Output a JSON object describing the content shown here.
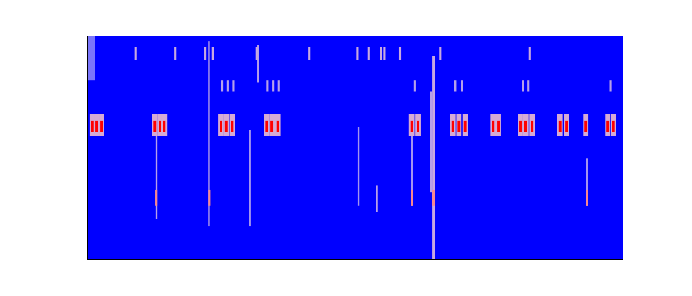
{
  "chart_data": {
    "type": "heatmap",
    "tick_labels": false,
    "xlim": [
      0,
      100
    ],
    "ylim": [
      0,
      100
    ],
    "zlim": [
      0,
      1
    ],
    "colors": [
      "#0000ff",
      "#ffffff",
      "#ff0000"
    ],
    "cells": [
      [
        0,
        1.5,
        80,
        100,
        0.25
      ],
      [
        12.8,
        13.1,
        17.8,
        56,
        0.4
      ],
      [
        22.6,
        22.9,
        14.7,
        97.5,
        0.4
      ],
      [
        64.5,
        64.9,
        0,
        91,
        0.45
      ],
      [
        64.0,
        64.4,
        30,
        75,
        0.4
      ],
      [
        30.2,
        30.5,
        14.7,
        57.7,
        0.35
      ],
      [
        50.5,
        50.8,
        24,
        59,
        0.35
      ],
      [
        53.9,
        54.2,
        21,
        33,
        0.4
      ],
      [
        93.2,
        93.5,
        24,
        45,
        0.35
      ],
      [
        60.5,
        60.8,
        24,
        55,
        0.35
      ],
      [
        31.8,
        32.1,
        79,
        96,
        0.4
      ],
      [
        8.8,
        9.2,
        89,
        95,
        0.45
      ],
      [
        16.3,
        16.7,
        89,
        95,
        0.45
      ],
      [
        21.8,
        22.2,
        89,
        95,
        0.45
      ],
      [
        23.3,
        23.7,
        89,
        95,
        0.45
      ],
      [
        31.5,
        31.9,
        89,
        95,
        0.45
      ],
      [
        41.3,
        41.7,
        89,
        95,
        0.45
      ],
      [
        50.3,
        50.7,
        89,
        95,
        0.45
      ],
      [
        52.4,
        52.8,
        89,
        95,
        0.45
      ],
      [
        54.7,
        55.1,
        89,
        95,
        0.45
      ],
      [
        55.3,
        55.7,
        89,
        95,
        0.45
      ],
      [
        58.2,
        58.6,
        89,
        95,
        0.45
      ],
      [
        65.8,
        66.2,
        89,
        95,
        0.45
      ],
      [
        82.4,
        82.8,
        89,
        95,
        0.45
      ],
      [
        25.0,
        25.4,
        75,
        80,
        0.4
      ],
      [
        26.0,
        26.4,
        75,
        80,
        0.4
      ],
      [
        27.1,
        27.5,
        75,
        80,
        0.4
      ],
      [
        33.5,
        33.9,
        75,
        80,
        0.4
      ],
      [
        34.5,
        34.9,
        75,
        80,
        0.4
      ],
      [
        35.6,
        36.0,
        75,
        80,
        0.4
      ],
      [
        61.0,
        61.4,
        75,
        80,
        0.4
      ],
      [
        68.5,
        68.9,
        75,
        80,
        0.4
      ],
      [
        69.8,
        70.2,
        75,
        80,
        0.4
      ],
      [
        81.2,
        81.6,
        75,
        80,
        0.4
      ],
      [
        82.2,
        82.6,
        75,
        80,
        0.4
      ],
      [
        97.5,
        97.9,
        75,
        80,
        0.4
      ],
      [
        12.7,
        13.1,
        24,
        31,
        0.7
      ],
      [
        22.6,
        23.0,
        24,
        31,
        0.7
      ],
      [
        60.4,
        60.8,
        24,
        31,
        0.7
      ],
      [
        64.5,
        64.9,
        24,
        31,
        0.7
      ],
      [
        93.1,
        93.5,
        24,
        31,
        0.7
      ],
      [
        0.5,
        1.5,
        55,
        65,
        0.5
      ],
      [
        0.75,
        1.25,
        57,
        62,
        1
      ],
      [
        1.3,
        2.3,
        55,
        65,
        0.5
      ],
      [
        1.55,
        2.05,
        57,
        62,
        1
      ],
      [
        2.2,
        3.2,
        55,
        65,
        0.5
      ],
      [
        2.45,
        2.95,
        57,
        62,
        1
      ],
      [
        12.1,
        13.1,
        55,
        65,
        0.5
      ],
      [
        12.35,
        12.85,
        57,
        62,
        1
      ],
      [
        13.1,
        14.1,
        55,
        65,
        0.5
      ],
      [
        13.35,
        13.85,
        57,
        62,
        1
      ],
      [
        13.9,
        14.9,
        55,
        65,
        0.5
      ],
      [
        14.15,
        14.65,
        57,
        62,
        1
      ],
      [
        24.5,
        25.5,
        55,
        65,
        0.5
      ],
      [
        24.75,
        25.25,
        57,
        62,
        1
      ],
      [
        25.5,
        26.5,
        55,
        65,
        0.5
      ],
      [
        25.75,
        26.25,
        57,
        62,
        1
      ],
      [
        26.6,
        27.6,
        55,
        65,
        0.5
      ],
      [
        26.85,
        27.35,
        57,
        62,
        1
      ],
      [
        33,
        34,
        55,
        65,
        0.5
      ],
      [
        33.25,
        33.75,
        57,
        62,
        1
      ],
      [
        34,
        35,
        55,
        65,
        0.5
      ],
      [
        34.25,
        34.75,
        57,
        62,
        1
      ],
      [
        35.1,
        36.1,
        55,
        65,
        0.5
      ],
      [
        35.35,
        35.85,
        57,
        62,
        1
      ],
      [
        60.1,
        61.1,
        55,
        65,
        0.5
      ],
      [
        60.35,
        60.85,
        57,
        62,
        1
      ],
      [
        61.3,
        62.3,
        55,
        65,
        0.5
      ],
      [
        61.55,
        62.05,
        57,
        62,
        1
      ],
      [
        67.8,
        68.8,
        55,
        65,
        0.5
      ],
      [
        68.05,
        68.55,
        57,
        62,
        1
      ],
      [
        68.9,
        69.9,
        55,
        65,
        0.5
      ],
      [
        69.15,
        69.65,
        57,
        62,
        1
      ],
      [
        70.1,
        71.1,
        55,
        65,
        0.5
      ],
      [
        70.35,
        70.85,
        57,
        62,
        1
      ],
      [
        75.3,
        76.3,
        55,
        65,
        0.5
      ],
      [
        75.55,
        76.05,
        57,
        62,
        1
      ],
      [
        76.3,
        77.3,
        55,
        65,
        0.5
      ],
      [
        76.55,
        77.05,
        57,
        62,
        1
      ],
      [
        80.4,
        81.4,
        55,
        65,
        0.5
      ],
      [
        80.65,
        81.15,
        57,
        62,
        1
      ],
      [
        81.4,
        82.4,
        55,
        65,
        0.5
      ],
      [
        81.65,
        82.15,
        57,
        62,
        1
      ],
      [
        82.6,
        83.6,
        55,
        65,
        0.5
      ],
      [
        82.85,
        83.35,
        57,
        62,
        1
      ],
      [
        87.8,
        88.8,
        55,
        65,
        0.5
      ],
      [
        88.05,
        88.55,
        57,
        62,
        1
      ],
      [
        89,
        90,
        55,
        65,
        0.5
      ],
      [
        89.25,
        89.75,
        57,
        62,
        1
      ],
      [
        92.6,
        93.6,
        55,
        65,
        0.5
      ],
      [
        92.85,
        93.35,
        57,
        62,
        1
      ],
      [
        96.7,
        97.7,
        55,
        65,
        0.5
      ],
      [
        96.95,
        97.45,
        57,
        62,
        1
      ],
      [
        97.8,
        98.8,
        55,
        65,
        0.5
      ],
      [
        98.05,
        98.55,
        57,
        62,
        1
      ]
    ]
  }
}
